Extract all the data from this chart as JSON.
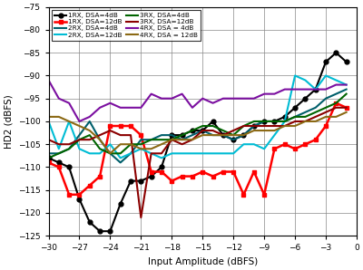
{
  "xlabel": "Input Amplitude (dBFS)",
  "ylabel": "HD2 (dBFS)",
  "xlim": [
    -30,
    0
  ],
  "ylim": [
    -125,
    -75
  ],
  "xticks": [
    -30,
    -27,
    -24,
    -21,
    -18,
    -15,
    -12,
    -9,
    -6,
    -3,
    0
  ],
  "yticks": [
    -125,
    -120,
    -115,
    -110,
    -105,
    -100,
    -95,
    -90,
    -85,
    -80,
    -75
  ],
  "x": [
    -30,
    -29,
    -28,
    -27,
    -26,
    -25,
    -24,
    -23,
    -22,
    -21,
    -20,
    -19,
    -18,
    -17,
    -16,
    -15,
    -14,
    -13,
    -12,
    -11,
    -10,
    -9,
    -8,
    -7,
    -6,
    -5,
    -4,
    -3,
    -2,
    -1
  ],
  "series": [
    {
      "label": "1RX, DSA=4dB",
      "color": "#000000",
      "marker": "o",
      "markersize": 3.5,
      "linewidth": 1.5,
      "y": [
        -108,
        -109,
        -110,
        -117,
        -122,
        -124,
        -124,
        -118,
        -113,
        -113,
        -112,
        -110,
        -103,
        -103,
        -102,
        -102,
        -100,
        -103,
        -104,
        -103,
        -101,
        -100,
        -100,
        -99,
        -97,
        -95,
        -93,
        -87,
        -85,
        -87
      ]
    },
    {
      "label": "1RX, DSA=12dB",
      "color": "#ff0000",
      "marker": "s",
      "markersize": 3.5,
      "linewidth": 1.8,
      "y": [
        -109,
        -110,
        -116,
        -116,
        -114,
        -112,
        -101,
        -101,
        -101,
        -103,
        -111,
        -111,
        -113,
        -112,
        -112,
        -111,
        -112,
        -111,
        -111,
        -116,
        -111,
        -116,
        -106,
        -105,
        -106,
        -105,
        -104,
        -101,
        -96,
        -97
      ]
    },
    {
      "label": "2RX, DSA=4dB",
      "color": "#005f6b",
      "marker": null,
      "markersize": 0,
      "linewidth": 1.5,
      "y": [
        -107,
        -107,
        -106,
        -103,
        -100,
        -104,
        -107,
        -109,
        -107,
        -104,
        -104,
        -103,
        -103,
        -104,
        -103,
        -102,
        -103,
        -103,
        -104,
        -103,
        -101,
        -100,
        -100,
        -100,
        -99,
        -98,
        -97,
        -95,
        -94,
        -93
      ]
    },
    {
      "label": "2RX, DSA=12dB",
      "color": "#00bcd4",
      "marker": null,
      "markersize": 0,
      "linewidth": 1.5,
      "y": [
        -100,
        -106,
        -100,
        -106,
        -107,
        -107,
        -105,
        -108,
        -107,
        -106,
        -107,
        -108,
        -107,
        -107,
        -107,
        -107,
        -107,
        -107,
        -107,
        -105,
        -105,
        -106,
        -103,
        -100,
        -90,
        -91,
        -93,
        -90,
        -91,
        -92
      ]
    },
    {
      "label": "3RX, DSA=4dB",
      "color": "#006400",
      "marker": null,
      "markersize": 0,
      "linewidth": 1.5,
      "y": [
        -108,
        -107,
        -106,
        -104,
        -103,
        -106,
        -107,
        -107,
        -105,
        -105,
        -104,
        -104,
        -104,
        -103,
        -102,
        -101,
        -101,
        -102,
        -103,
        -101,
        -100,
        -100,
        -100,
        -100,
        -99,
        -99,
        -98,
        -97,
        -96,
        -94
      ]
    },
    {
      "label": "3RX, DSA=12dB",
      "color": "#8b0000",
      "marker": null,
      "markersize": 0,
      "linewidth": 1.5,
      "y": [
        -104,
        -105,
        -105,
        -104,
        -104,
        -103,
        -102,
        -103,
        -103,
        -121,
        -107,
        -107,
        -104,
        -105,
        -104,
        -102,
        -102,
        -103,
        -102,
        -101,
        -101,
        -101,
        -101,
        -101,
        -100,
        -100,
        -99,
        -98,
        -97,
        -97
      ]
    },
    {
      "label": "4RX, DSA = 4dB",
      "color": "#7b0fa0",
      "marker": null,
      "markersize": 0,
      "linewidth": 1.5,
      "y": [
        -91,
        -95,
        -96,
        -100,
        -99,
        -97,
        -96,
        -97,
        -97,
        -97,
        -94,
        -95,
        -95,
        -94,
        -97,
        -95,
        -96,
        -95,
        -95,
        -95,
        -95,
        -94,
        -94,
        -93,
        -93,
        -93,
        -93,
        -93,
        -92,
        -92
      ]
    },
    {
      "label": "4RX, DSA = 12dB",
      "color": "#8B6914",
      "marker": null,
      "markersize": 0,
      "linewidth": 1.5,
      "y": [
        -99,
        -99,
        -100,
        -101,
        -102,
        -104,
        -107,
        -105,
        -105,
        -106,
        -106,
        -105,
        -104,
        -104,
        -104,
        -103,
        -103,
        -103,
        -103,
        -103,
        -102,
        -102,
        -102,
        -101,
        -101,
        -100,
        -100,
        -99,
        -99,
        -98
      ]
    }
  ]
}
